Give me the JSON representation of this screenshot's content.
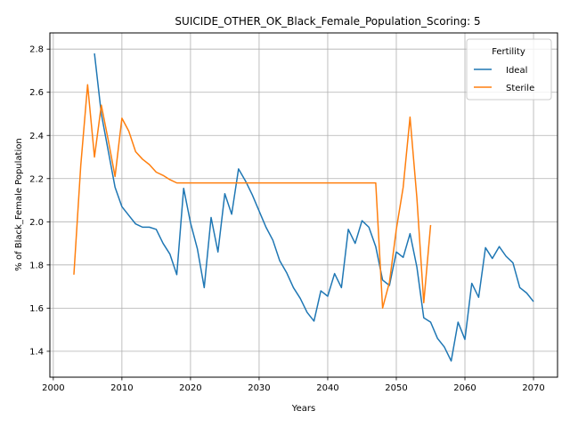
{
  "chart_data": {
    "type": "line",
    "title": "SUICIDE_OTHER_OK_Black_Female_Population_Scoring: 5",
    "xlabel": "Years",
    "ylabel": "% of Black_Female Population",
    "xlim": [
      1999.5,
      2073.5
    ],
    "ylim": [
      1.28,
      2.875
    ],
    "xticks": [
      2000,
      2010,
      2020,
      2030,
      2040,
      2050,
      2060,
      2070
    ],
    "yticks": [
      1.4,
      1.6,
      1.8,
      2.0,
      2.2,
      2.4,
      2.6,
      2.8
    ],
    "xtick_labels": [
      "2000",
      "2010",
      "2020",
      "2030",
      "2040",
      "2050",
      "2060",
      "2070"
    ],
    "ytick_labels": [
      "1.4",
      "1.6",
      "1.8",
      "2.0",
      "2.2",
      "2.4",
      "2.6",
      "2.8"
    ],
    "grid": true,
    "legend": {
      "title": "Fertility",
      "position": "top-right"
    },
    "series": [
      {
        "name": "Ideal",
        "color": "#1f77b4",
        "x": [
          2006,
          2007,
          2008,
          2009,
          2010,
          2011,
          2012,
          2013,
          2014,
          2015,
          2016,
          2017,
          2018,
          2019,
          2020,
          2021,
          2022,
          2023,
          2024,
          2025,
          2026,
          2027,
          2028,
          2029,
          2030,
          2031,
          2032,
          2033,
          2034,
          2035,
          2036,
          2037,
          2038,
          2039,
          2040,
          2041,
          2042,
          2043,
          2044,
          2045,
          2046,
          2047,
          2048,
          2049,
          2050,
          2051,
          2052,
          2053,
          2054,
          2055,
          2056,
          2057,
          2058,
          2059,
          2060,
          2061,
          2062,
          2063,
          2064,
          2065,
          2066,
          2067,
          2068,
          2069,
          2070
        ],
        "y": [
          2.78,
          2.5,
          2.33,
          2.16,
          2.07,
          2.03,
          1.99,
          1.975,
          1.975,
          1.965,
          1.9,
          1.85,
          1.755,
          2.155,
          1.995,
          1.875,
          1.695,
          2.02,
          1.86,
          2.13,
          2.035,
          2.245,
          2.19,
          2.125,
          2.05,
          1.975,
          1.915,
          1.82,
          1.765,
          1.695,
          1.645,
          1.58,
          1.54,
          1.68,
          1.655,
          1.76,
          1.695,
          1.965,
          1.9,
          2.005,
          1.975,
          1.885,
          1.73,
          1.705,
          1.86,
          1.835,
          1.945,
          1.79,
          1.555,
          1.535,
          1.46,
          1.42,
          1.355,
          1.535,
          1.455,
          1.715,
          1.65,
          1.88,
          1.83,
          1.885,
          1.84,
          1.81,
          1.695,
          1.67,
          1.63
        ]
      },
      {
        "name": "Sterile",
        "color": "#ff7f0e",
        "x": [
          2003,
          2004,
          2005,
          2006,
          2007,
          2008,
          2009,
          2010,
          2011,
          2012,
          2013,
          2014,
          2015,
          2016,
          2017,
          2018,
          2019,
          2020,
          2021,
          2022,
          2023,
          2024,
          2025,
          2026,
          2027,
          2028,
          2029,
          2030,
          2031,
          2032,
          2033,
          2034,
          2035,
          2036,
          2037,
          2038,
          2039,
          2040,
          2041,
          2042,
          2043,
          2044,
          2045,
          2046,
          2047,
          2048,
          2049,
          2050,
          2051,
          2052,
          2053,
          2054,
          2055
        ],
        "y": [
          1.755,
          2.26,
          2.635,
          2.3,
          2.54,
          2.38,
          2.21,
          2.48,
          2.42,
          2.325,
          2.29,
          2.265,
          2.23,
          2.215,
          2.195,
          2.18,
          2.18,
          2.18,
          2.18,
          2.18,
          2.18,
          2.18,
          2.18,
          2.18,
          2.18,
          2.18,
          2.18,
          2.18,
          2.18,
          2.18,
          2.18,
          2.18,
          2.18,
          2.18,
          2.18,
          2.18,
          2.18,
          2.18,
          2.18,
          2.18,
          2.18,
          2.18,
          2.18,
          2.18,
          2.18,
          1.6,
          1.72,
          1.965,
          2.16,
          2.485,
          2.11,
          1.625,
          1.985
        ]
      }
    ]
  }
}
